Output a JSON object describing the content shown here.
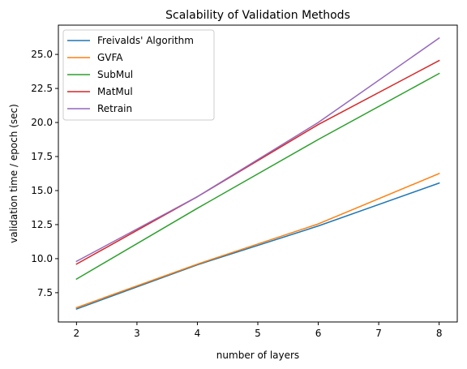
{
  "chart_data": {
    "type": "line",
    "title": "Scalability of Validation Methods",
    "xlabel": "number of layers",
    "ylabel": "validation time / epoch (sec)",
    "xlim": [
      1.7,
      8.3
    ],
    "ylim": [
      5.35,
      27.15
    ],
    "xticks": [
      2,
      3,
      4,
      5,
      6,
      7,
      8
    ],
    "yticks": [
      7.5,
      10.0,
      12.5,
      15.0,
      17.5,
      20.0,
      22.5,
      25.0
    ],
    "grid": false,
    "legend_position": "upper left",
    "x": [
      2,
      4,
      6,
      8
    ],
    "series": [
      {
        "name": "Freivalds' Algorithm",
        "color": "#1f77b4",
        "values": [
          6.3,
          9.55,
          12.4,
          15.55
        ]
      },
      {
        "name": "GVFA",
        "color": "#ff7f0e",
        "values": [
          6.4,
          9.6,
          12.55,
          16.25
        ]
      },
      {
        "name": "SubMul",
        "color": "#2ca02c",
        "values": [
          8.5,
          13.7,
          18.75,
          23.6
        ]
      },
      {
        "name": "MatMul",
        "color": "#d62728",
        "values": [
          9.6,
          14.55,
          19.85,
          24.55
        ]
      },
      {
        "name": "Retrain",
        "color": "#9467bd",
        "values": [
          9.8,
          14.55,
          20.0,
          26.2
        ]
      }
    ]
  }
}
